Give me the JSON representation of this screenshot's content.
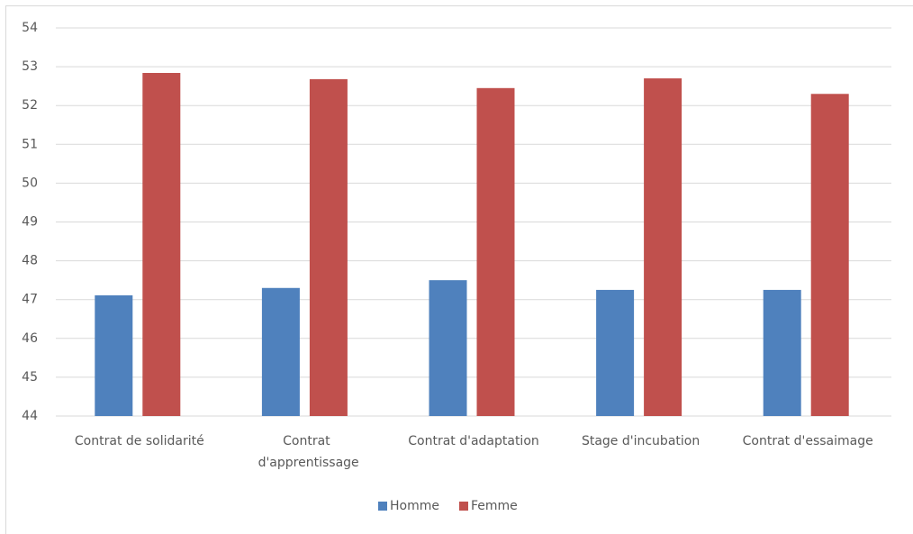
{
  "chart_data": {
    "type": "bar",
    "categories": [
      "Contrat de solidarité",
      "Contrat d'apprentissage",
      "Contrat d'adaptation",
      "Stage d'incubation",
      "Contrat d'essaimage"
    ],
    "series": [
      {
        "name": "Homme",
        "color": "#4f81bd",
        "values": [
          47.11,
          47.3,
          47.5,
          47.25,
          47.25
        ]
      },
      {
        "name": "Femme",
        "color": "#c0504d",
        "values": [
          52.84,
          52.68,
          52.45,
          52.7,
          52.3
        ]
      }
    ],
    "ylim": [
      44,
      54
    ],
    "yticks": [
      44,
      45,
      46,
      47,
      48,
      49,
      50,
      51,
      52,
      53,
      54
    ],
    "grid": true,
    "legend": "bottom"
  }
}
